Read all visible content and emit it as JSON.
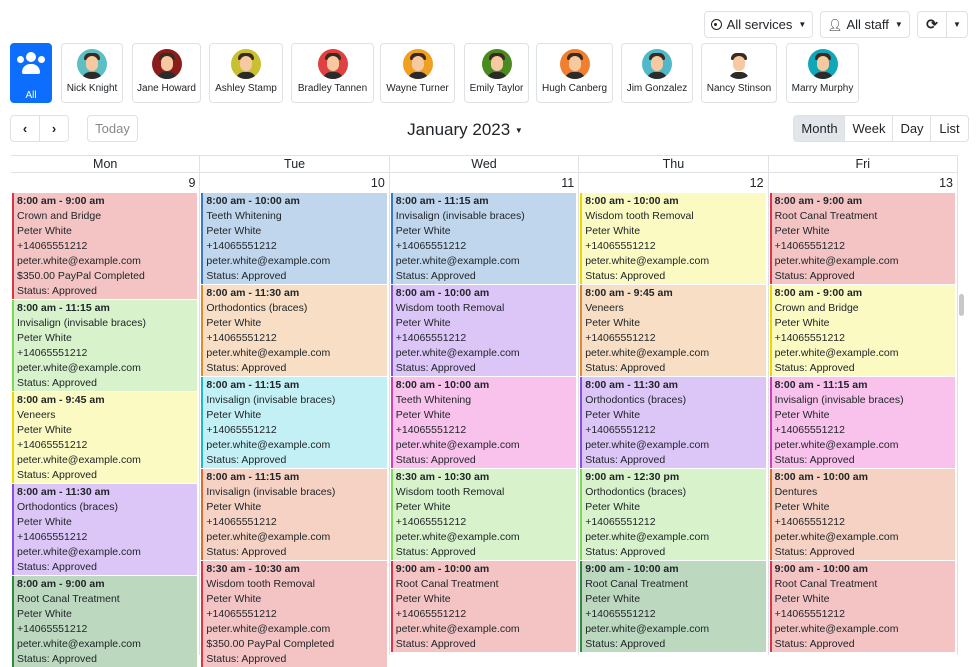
{
  "toolbar": {
    "services": "All services",
    "staff": "All staff",
    "today": "Today",
    "month_title": "January 2023",
    "views": [
      "Month",
      "Week",
      "Day",
      "List"
    ],
    "active_view": "Month"
  },
  "staff": [
    {
      "name": "All",
      "color": "#0d6efd"
    },
    {
      "name": "Nick Knight",
      "color": "#5bbfc4"
    },
    {
      "name": "Jane Howard",
      "color": "#8b1c1c"
    },
    {
      "name": "Ashley Stamp",
      "color": "#c8c030"
    },
    {
      "name": "Bradley Tannen",
      "color": "#e04040"
    },
    {
      "name": "Wayne Turner",
      "color": "#f0a020"
    },
    {
      "name": "Emily Taylor",
      "color": "#4a8a20"
    },
    {
      "name": "Hugh Canberg",
      "color": "#f08030"
    },
    {
      "name": "Jim Gonzalez",
      "color": "#50b8c8"
    },
    {
      "name": "Nancy Stinson",
      "color": "#ffffff"
    },
    {
      "name": "Marry Murphy",
      "color": "#10a8b8"
    }
  ],
  "palette": {
    "pink": [
      "#f4c4c4",
      "#dc3545"
    ],
    "lgreen": [
      "#d8f3cc",
      "#7ed957"
    ],
    "yellow": [
      "#fafac2",
      "#e6d800"
    ],
    "purple": [
      "#dcc6f8",
      "#8a4fe0"
    ],
    "dgreen": [
      "#bcd9c0",
      "#2e8b3e"
    ],
    "blue": [
      "#bfd6ec",
      "#3a78c8"
    ],
    "peach": [
      "#f7dec4",
      "#e08a30"
    ],
    "cyan": [
      "#c2f0f4",
      "#20b8c8"
    ],
    "magenta": [
      "#f8c2ec",
      "#d040b0"
    ],
    "salmon": [
      "#f6d2c4",
      "#e06a30"
    ]
  },
  "days": [
    {
      "name": "Mon",
      "date": "9",
      "events": [
        {
          "time": "8:00 am - 9:00 am",
          "service": "Crown and Bridge",
          "client": "Peter White",
          "phone": "+14065551212",
          "email": "peter.white@example.com",
          "payment": "$350.00 PayPal Completed",
          "status": "Status: Approved",
          "color": "pink"
        },
        {
          "time": "8:00 am - 11:15 am",
          "service": "Invisalign (invisable braces)",
          "client": "Peter White",
          "phone": "+14065551212",
          "email": "peter.white@example.com",
          "status": "Status: Approved",
          "color": "lgreen"
        },
        {
          "time": "8:00 am - 9:45 am",
          "service": "Veneers",
          "client": "Peter White",
          "phone": "+14065551212",
          "email": "peter.white@example.com",
          "status": "Status: Approved",
          "color": "yellow"
        },
        {
          "time": "8:00 am - 11:30 am",
          "service": "Orthodontics (braces)",
          "client": "Peter White",
          "phone": "+14065551212",
          "email": "peter.white@example.com",
          "status": "Status: Approved",
          "color": "purple"
        },
        {
          "time": "8:00 am - 9:00 am",
          "service": "Root Canal Treatment",
          "client": "Peter White",
          "phone": "+14065551212",
          "email": "peter.white@example.com",
          "status": "Status: Approved",
          "color": "dgreen"
        }
      ]
    },
    {
      "name": "Tue",
      "date": "10",
      "events": [
        {
          "time": "8:00 am - 10:00 am",
          "service": "Teeth Whitening",
          "client": "Peter White",
          "phone": "+14065551212",
          "email": "peter.white@example.com",
          "status": "Status: Approved",
          "color": "blue"
        },
        {
          "time": "8:00 am - 11:30 am",
          "service": "Orthodontics (braces)",
          "client": "Peter White",
          "phone": "+14065551212",
          "email": "peter.white@example.com",
          "status": "Status: Approved",
          "color": "peach"
        },
        {
          "time": "8:00 am - 11:15 am",
          "service": "Invisalign (invisable braces)",
          "client": "Peter White",
          "phone": "+14065551212",
          "email": "peter.white@example.com",
          "status": "Status: Approved",
          "color": "cyan"
        },
        {
          "time": "8:00 am - 11:15 am",
          "service": "Invisalign (invisable braces)",
          "client": "Peter White",
          "phone": "+14065551212",
          "email": "peter.white@example.com",
          "status": "Status: Approved",
          "color": "salmon"
        },
        {
          "time": "8:30 am - 10:30 am",
          "service": "Wisdom tooth Removal",
          "client": "Peter White",
          "phone": "+14065551212",
          "email": "peter.white@example.com",
          "payment": "$350.00 PayPal Completed",
          "status": "Status: Approved",
          "color": "pink"
        }
      ]
    },
    {
      "name": "Wed",
      "date": "11",
      "events": [
        {
          "time": "8:00 am - 11:15 am",
          "service": "Invisalign (invisable braces)",
          "client": "Peter White",
          "phone": "+14065551212",
          "email": "peter.white@example.com",
          "status": "Status: Approved",
          "color": "blue"
        },
        {
          "time": "8:00 am - 10:00 am",
          "service": "Wisdom tooth Removal",
          "client": "Peter White",
          "phone": "+14065551212",
          "email": "peter.white@example.com",
          "status": "Status: Approved",
          "color": "purple"
        },
        {
          "time": "8:00 am - 10:00 am",
          "service": "Teeth Whitening",
          "client": "Peter White",
          "phone": "+14065551212",
          "email": "peter.white@example.com",
          "status": "Status: Approved",
          "color": "magenta"
        },
        {
          "time": "8:30 am - 10:30 am",
          "service": "Wisdom tooth Removal",
          "client": "Peter White",
          "phone": "+14065551212",
          "email": "peter.white@example.com",
          "status": "Status: Approved",
          "color": "lgreen"
        },
        {
          "time": "9:00 am - 10:00 am",
          "service": "Root Canal Treatment",
          "client": "Peter White",
          "phone": "+14065551212",
          "email": "peter.white@example.com",
          "status": "Status: Approved",
          "color": "pink"
        }
      ]
    },
    {
      "name": "Thu",
      "date": "12",
      "events": [
        {
          "time": "8:00 am - 10:00 am",
          "service": "Wisdom tooth Removal",
          "client": "Peter White",
          "phone": "+14065551212",
          "email": "peter.white@example.com",
          "status": "Status: Approved",
          "color": "yellow"
        },
        {
          "time": "8:00 am - 9:45 am",
          "service": "Veneers",
          "client": "Peter White",
          "phone": "+14065551212",
          "email": "peter.white@example.com",
          "status": "Status: Approved",
          "color": "peach"
        },
        {
          "time": "8:00 am - 11:30 am",
          "service": "Orthodontics (braces)",
          "client": "Peter White",
          "phone": "+14065551212",
          "email": "peter.white@example.com",
          "status": "Status: Approved",
          "color": "purple"
        },
        {
          "time": "9:00 am - 12:30 pm",
          "service": "Orthodontics (braces)",
          "client": "Peter White",
          "phone": "+14065551212",
          "email": "peter.white@example.com",
          "status": "Status: Approved",
          "color": "lgreen"
        },
        {
          "time": "9:00 am - 10:00 am",
          "service": "Root Canal Treatment",
          "client": "Peter White",
          "phone": "+14065551212",
          "email": "peter.white@example.com",
          "status": "Status: Approved",
          "color": "dgreen"
        }
      ]
    },
    {
      "name": "Fri",
      "date": "13",
      "events": [
        {
          "time": "8:00 am - 9:00 am",
          "service": "Root Canal Treatment",
          "client": "Peter White",
          "phone": "+14065551212",
          "email": "peter.white@example.com",
          "status": "Status: Approved",
          "color": "pink"
        },
        {
          "time": "8:00 am - 9:00 am",
          "service": "Crown and Bridge",
          "client": "Peter White",
          "phone": "+14065551212",
          "email": "peter.white@example.com",
          "status": "Status: Approved",
          "color": "yellow"
        },
        {
          "time": "8:00 am - 11:15 am",
          "service": "Invisalign (invisable braces)",
          "client": "Peter White",
          "phone": "+14065551212",
          "email": "peter.white@example.com",
          "status": "Status: Approved",
          "color": "magenta"
        },
        {
          "time": "8:00 am - 10:00 am",
          "service": "Dentures",
          "client": "Peter White",
          "phone": "+14065551212",
          "email": "peter.white@example.com",
          "status": "Status: Approved",
          "color": "salmon"
        },
        {
          "time": "9:00 am - 10:00 am",
          "service": "Root Canal Treatment",
          "client": "Peter White",
          "phone": "+14065551212",
          "email": "peter.white@example.com",
          "status": "Status: Approved",
          "color": "pink"
        }
      ]
    }
  ]
}
